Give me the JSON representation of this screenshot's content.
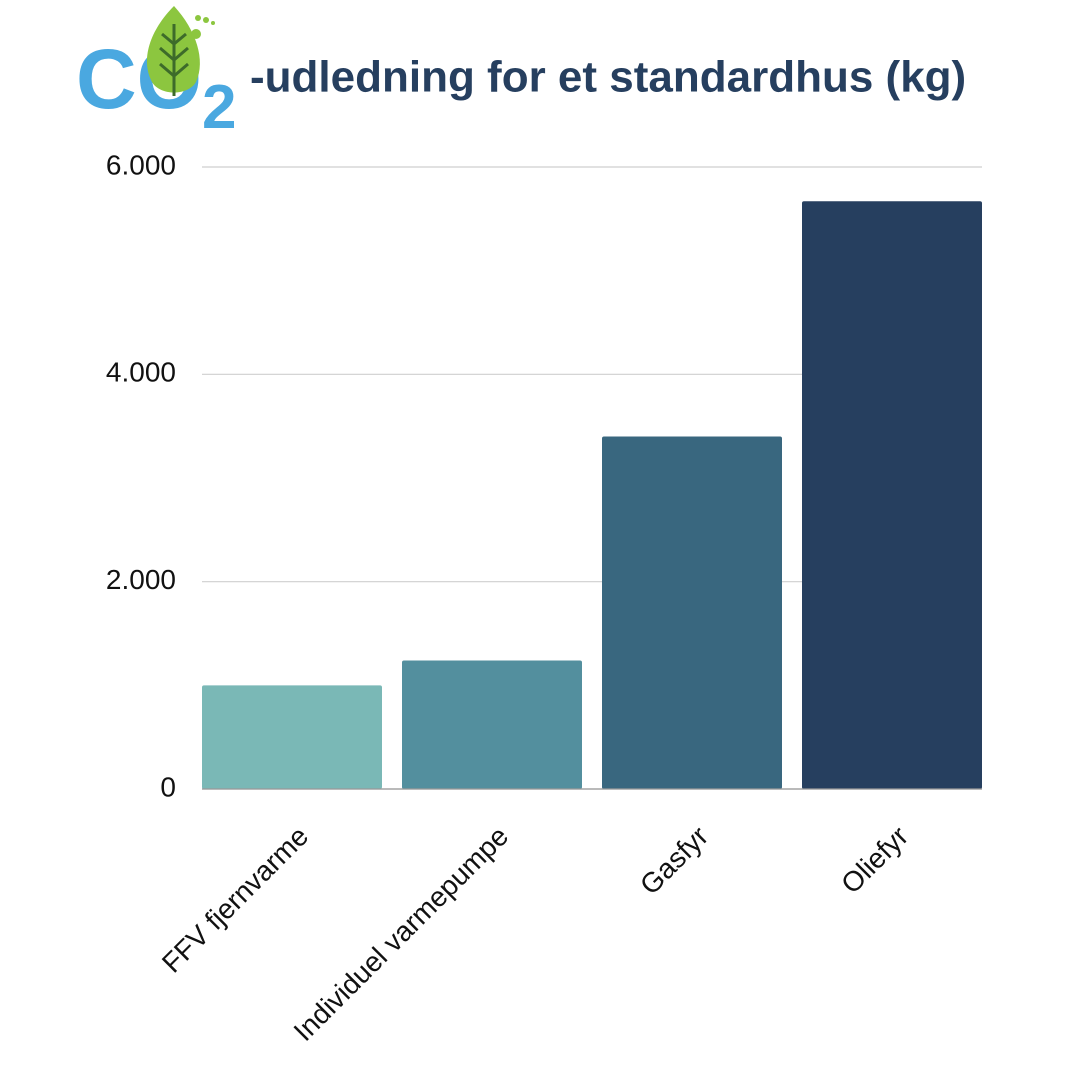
{
  "chart_data": {
    "type": "bar",
    "logo_text": "CO",
    "logo_subscript": "2",
    "title": "-udledning for et standardhus (kg)",
    "categories": [
      "FFV fjernvarme",
      "Individuel varmepumpe",
      "Gasfyr",
      "Oliefyr"
    ],
    "values": [
      1000,
      1240,
      3400,
      5670
    ],
    "colors": [
      "#7ab8b6",
      "#538f9e",
      "#39677f",
      "#263f5f"
    ],
    "ylim": [
      0,
      6000
    ],
    "yticks": [
      0,
      {
        "value": 2000,
        "label": "2.000"
      },
      {
        "value": 4000,
        "label": "4.000"
      },
      {
        "value": 6000,
        "label": "6.000"
      }
    ],
    "grid": true
  }
}
